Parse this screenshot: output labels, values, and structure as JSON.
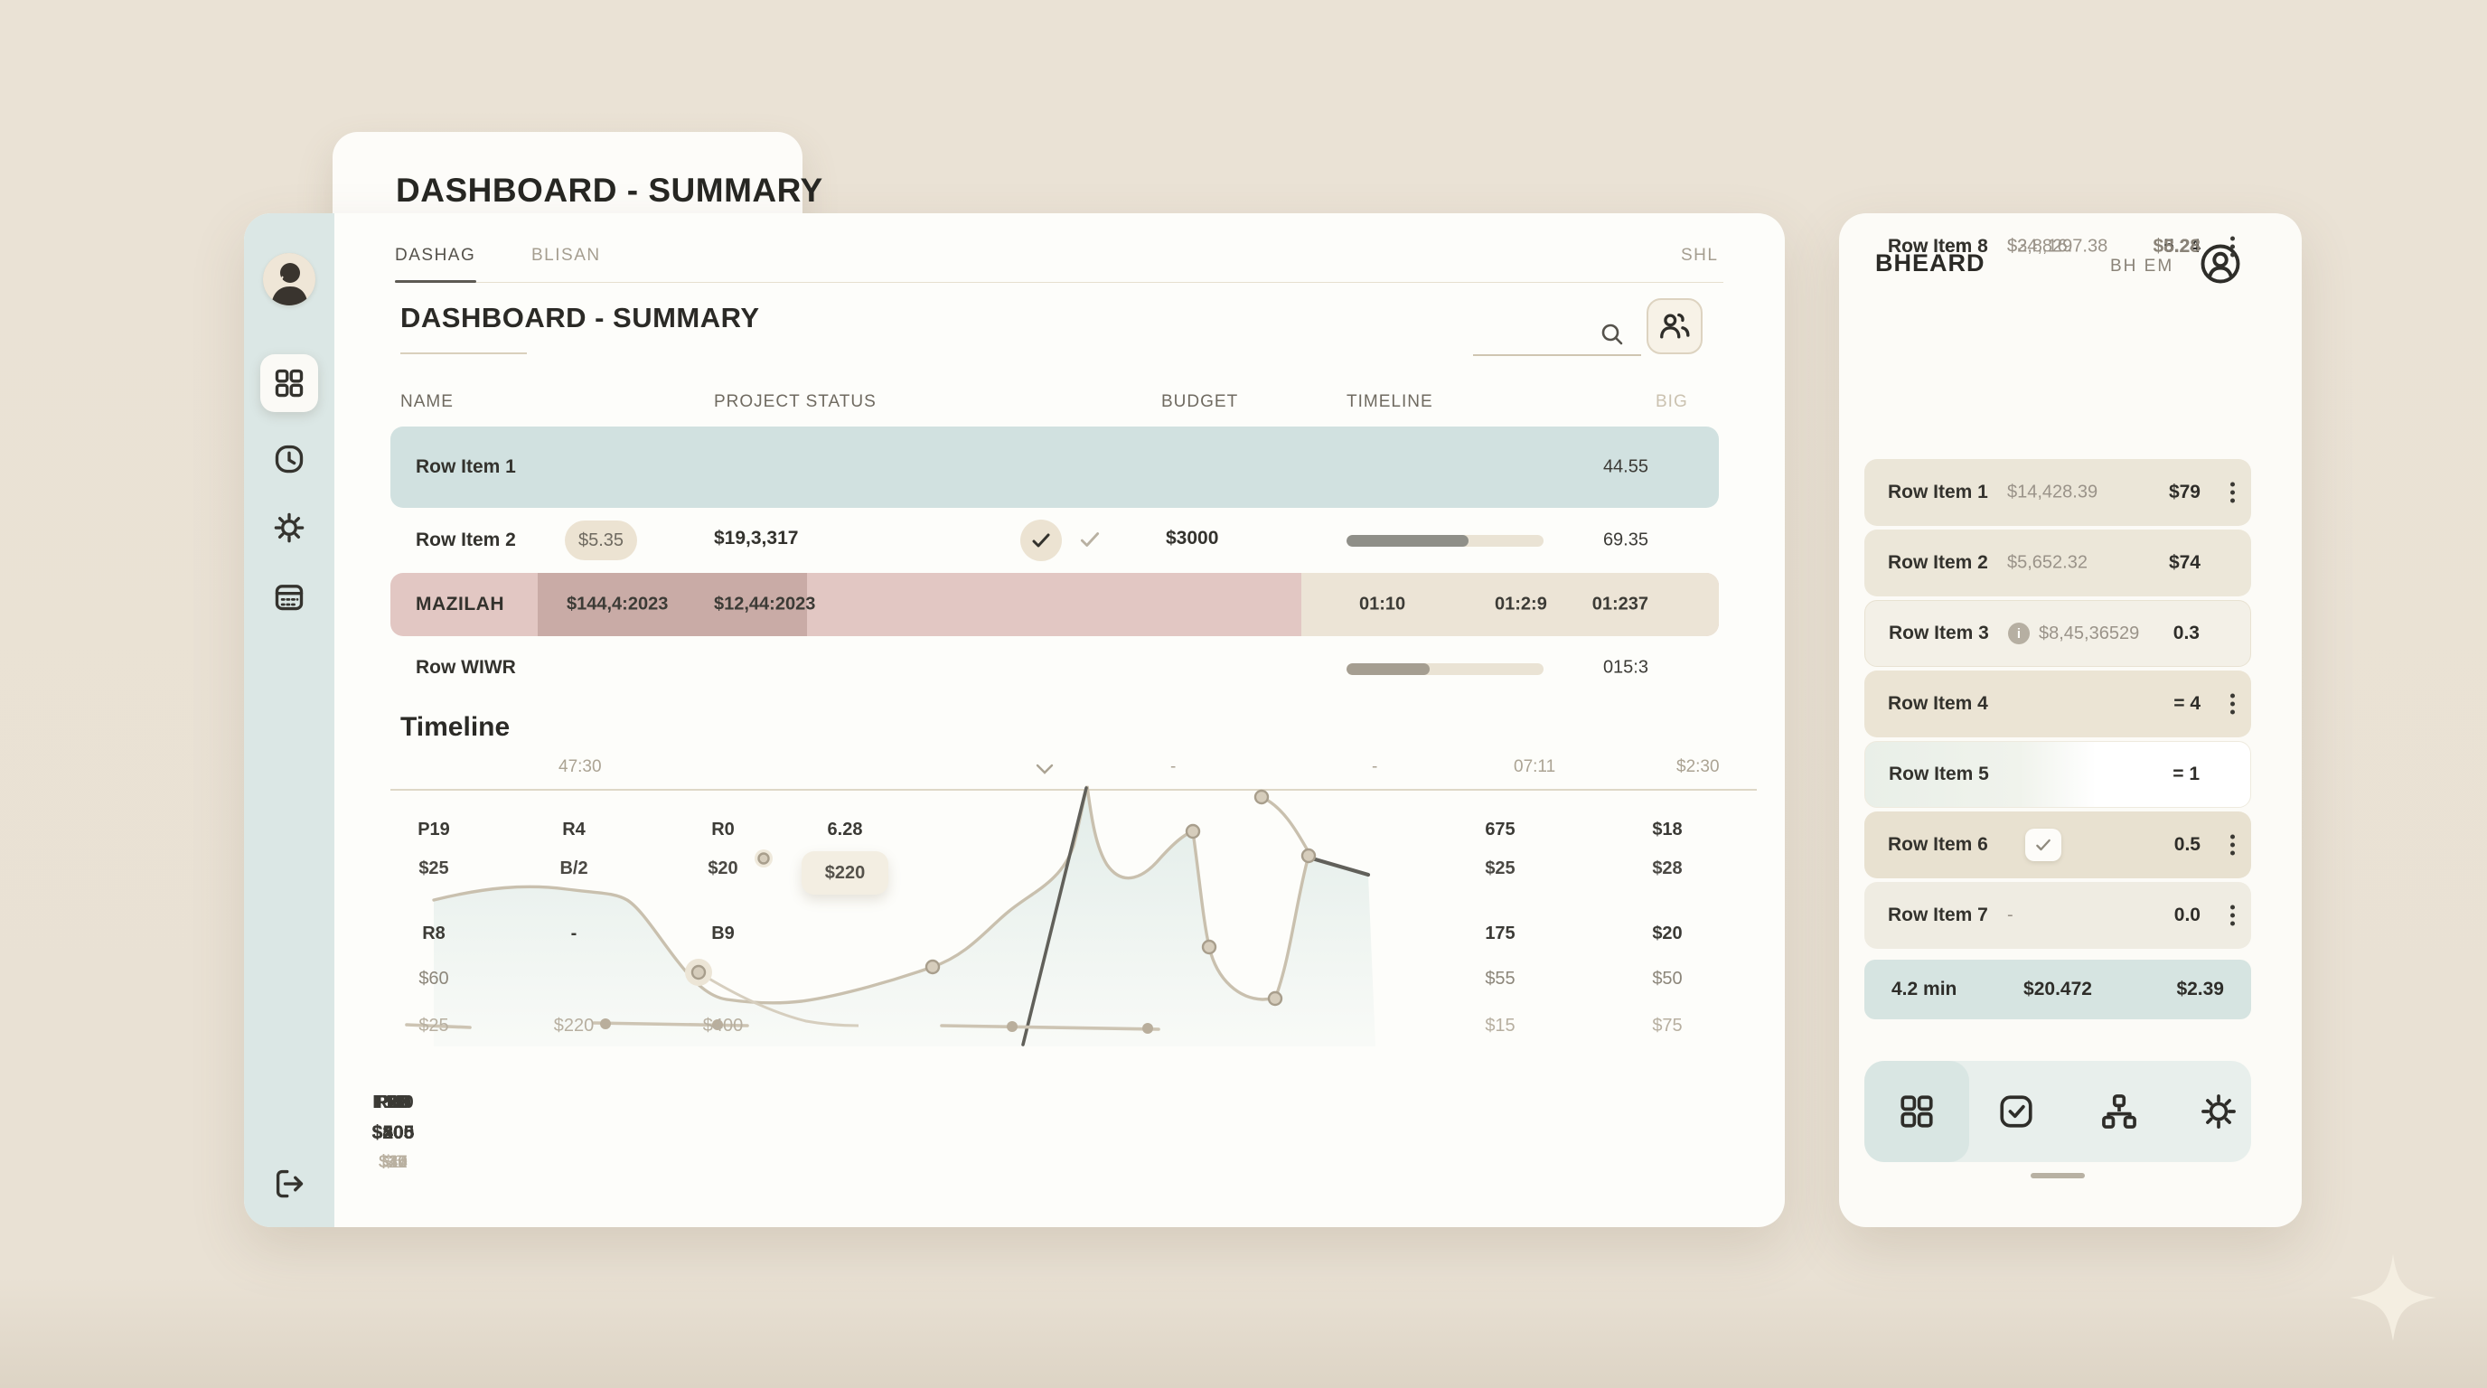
{
  "palette": {
    "accent_teal": "#d1e1e0",
    "accent_pink": "#e2c7c3",
    "accent_beige": "#ece4d6",
    "ink": "#2e2d29"
  },
  "tab_card": {
    "title": "DASHBOARD - SUMMARY"
  },
  "main": {
    "tabs": [
      {
        "label": "DASHAG"
      },
      {
        "label": "BLISAN"
      }
    ],
    "tab_right": "SHL",
    "title": "DASHBOARD - SUMMARY",
    "table": {
      "headers": [
        "NAME",
        "PROJECT STATUS",
        "BUDGET",
        "TIMELINE",
        "BIG"
      ],
      "rows": [
        {
          "name": "Row Item 1",
          "value": "44.55"
        },
        {
          "name": "Row Item 2",
          "badge": "$5.35",
          "status": "$19,3,317",
          "budget": "$3000",
          "progress": 62,
          "value": "69.35"
        },
        {
          "name": "MAZILAH",
          "block1": "$144,4:2023",
          "block2": "$12,44:2023",
          "t1": "01:10",
          "t2": "01:2:9",
          "t3": "01:237"
        },
        {
          "name": "Row WIWR",
          "progress": 42,
          "value": "015:3"
        }
      ]
    },
    "timeline": {
      "heading": "Timeline",
      "ruler": {
        "r0": "47:30",
        "dash1": "-",
        "dash2": "-",
        "r1": "07:11",
        "r2": "$2:30"
      },
      "labels": {
        "c0": [
          "P19",
          "$25",
          "R8",
          "$60",
          "$25"
        ],
        "c1": [
          "R4",
          "B/2",
          "-",
          "$220"
        ],
        "c2": [
          "R0",
          "$20",
          "B9",
          "$400"
        ],
        "c3": [
          "6.28",
          "$220"
        ],
        "c4": [
          "675",
          "$25",
          "175",
          "$55",
          "$15"
        ],
        "c5": [
          "$18",
          "$28",
          "$20",
          "$50",
          "$75"
        ]
      },
      "stats": [
        {
          "code": "P2D",
          "v1": "$205",
          "v2": "$37"
        },
        {
          "code": "RH8",
          "v1": "$200",
          "v2": "$44"
        },
        {
          "code": "R2D",
          "v1": "$205",
          "v2": "$6"
        },
        {
          "code": "Pn8",
          "v1": "$305",
          "v2": "$15"
        },
        {
          "code": "P20",
          "v1": "$205",
          "v2": "$31"
        },
        {
          "code": "P10",
          "v1": "$205",
          "v2": "$40"
        },
        {
          "code": "P10",
          "v1": "$405",
          "v2": "$10"
        },
        {
          "code": "P20",
          "v1": "$205",
          "v2": "$15"
        },
        {
          "code": "F120",
          "v1": "$505",
          "v2": "$30"
        }
      ]
    }
  },
  "panel": {
    "title": "BHEARD",
    "meta": "BH EM",
    "rows": [
      {
        "name": "Row Item 1",
        "mid": "$14,428.39",
        "end": "$79"
      },
      {
        "name": "Row Item 2",
        "mid": "$5,652.32",
        "end": "$74"
      },
      {
        "name": "Row Item 3",
        "mid": "$8,45,36529",
        "end": "0.3"
      },
      {
        "name": "Row Item 4",
        "mid": "",
        "end": "= 4"
      },
      {
        "name": "Row Item 5",
        "mid": "",
        "end": "= 1"
      },
      {
        "name": "Row Item 6",
        "mid": "",
        "end": "0.5"
      },
      {
        "name": "Row Item 7",
        "mid": "-",
        "end": "0.0"
      },
      {
        "name": "Row Item 8",
        "mid": "$34,829",
        "end": "5.24"
      },
      {
        "name": "Row Iten",
        "mid": "$2,8,16.7.38",
        "end": "$8.28"
      }
    ],
    "summary": {
      "a": "4.2 min",
      "b": "$20.472",
      "c": "$2.39"
    }
  },
  "chart_data": {
    "type": "area",
    "title": "Timeline",
    "x_ruler": [
      "47:30",
      "-",
      "-",
      "07:11",
      "$2:30"
    ],
    "legend": [],
    "grid": false,
    "series": [
      {
        "name": "main",
        "points_pct": [
          [
            3,
            43
          ],
          [
            13,
            40
          ],
          [
            17,
            43
          ],
          [
            22,
            64
          ],
          [
            25,
            77
          ],
          [
            29,
            66
          ],
          [
            39,
            65
          ],
          [
            44,
            46
          ],
          [
            50,
            4
          ],
          [
            52,
            30
          ],
          [
            55,
            26
          ],
          [
            58,
            19
          ],
          [
            59,
            58
          ],
          [
            64,
            76
          ],
          [
            66,
            28
          ],
          [
            70,
            34
          ]
        ]
      },
      {
        "name": "detached",
        "points_pct": [
          [
            62,
            8
          ],
          [
            66,
            26
          ]
        ]
      }
    ],
    "annotation_labels_left": [
      [
        "P19",
        "$25",
        "R8",
        "$60",
        "$25"
      ],
      [
        "R4",
        "B/2",
        "-",
        "$220"
      ],
      [
        "R0",
        "$20",
        "B9",
        "$400"
      ],
      [
        "6.28",
        "$220"
      ]
    ],
    "annotation_labels_right": [
      [
        "675",
        "$25",
        "175",
        "$55",
        "$15"
      ],
      [
        "$18",
        "$28",
        "$20",
        "$50",
        "$75"
      ]
    ]
  }
}
